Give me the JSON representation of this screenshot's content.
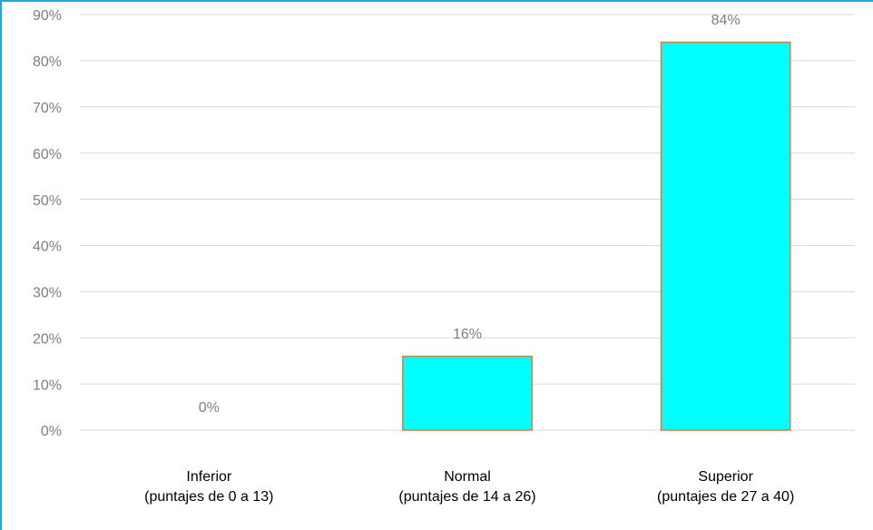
{
  "chart_data": {
    "type": "bar",
    "categories": [
      [
        "Inferior",
        "(puntajes de 0 a 13)"
      ],
      [
        "Normal",
        "(puntajes de 14 a 26)"
      ],
      [
        "Superior",
        "(puntajes de 27 a 40)"
      ]
    ],
    "values": [
      0,
      16,
      84
    ],
    "value_labels": [
      "0%",
      "16%",
      "84%"
    ],
    "color": "#00ffff",
    "edge_color": "#e07b39",
    "ylim": [
      0,
      90
    ],
    "yticks": [
      {
        "value": 0,
        "label": "0%"
      },
      {
        "value": 10,
        "label": "10%"
      },
      {
        "value": 20,
        "label": "20%"
      },
      {
        "value": 30,
        "label": "30%"
      },
      {
        "value": 40,
        "label": "40%"
      },
      {
        "value": 50,
        "label": "50%"
      },
      {
        "value": 60,
        "label": "60%"
      },
      {
        "value": 70,
        "label": "70%"
      },
      {
        "value": 80,
        "label": "80%"
      },
      {
        "value": 90,
        "label": "90%"
      }
    ],
    "grid": true
  }
}
